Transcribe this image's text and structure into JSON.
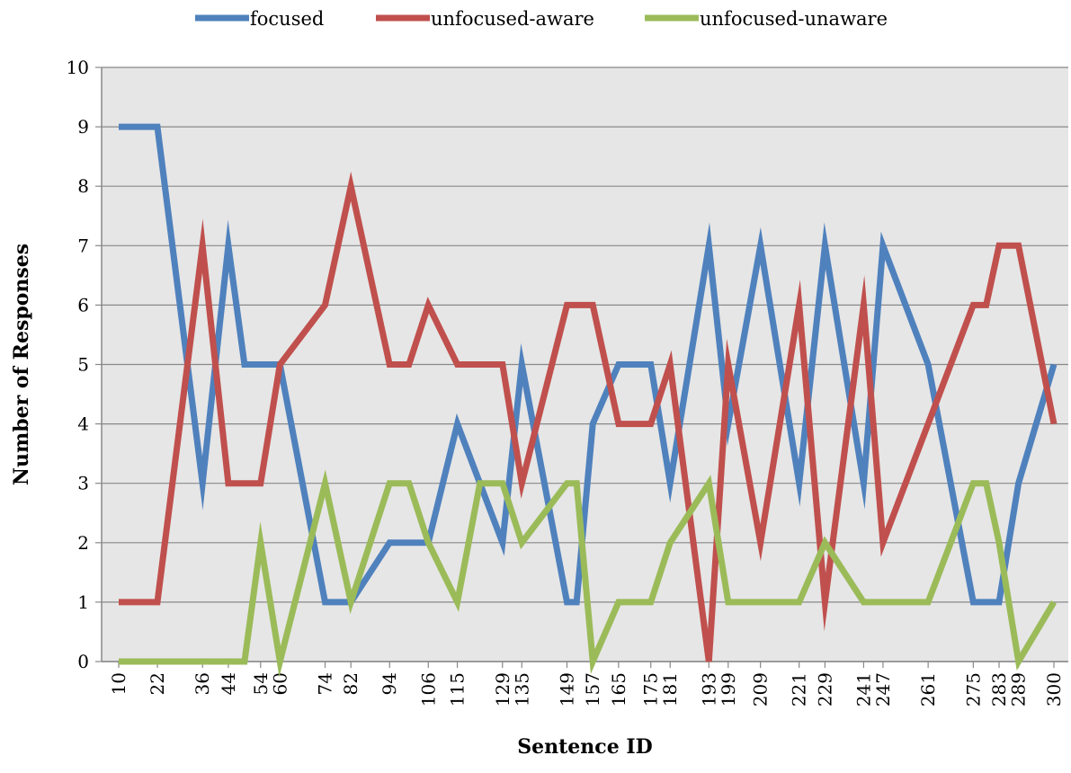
{
  "chart_data": {
    "type": "line",
    "xlabel": "Sentence ID",
    "ylabel": "Number of Responses",
    "ylim": [
      0,
      10
    ],
    "y_ticks": [
      0,
      1,
      2,
      3,
      4,
      5,
      6,
      7,
      8,
      9,
      10
    ],
    "grid": "horizontal",
    "legend_position": "top",
    "x_tick_labels": [
      "10",
      "22",
      "36",
      "44",
      "54",
      "60",
      "74",
      "82",
      "94",
      "106",
      "115",
      "129",
      "135",
      "149",
      "157",
      "165",
      "175",
      "181",
      "193",
      "199",
      "209",
      "221",
      "229",
      "241",
      "247",
      "261",
      "275",
      "283",
      "289",
      "300"
    ],
    "x": [
      10,
      16,
      22,
      36,
      44,
      49,
      54,
      60,
      74,
      82,
      94,
      100,
      106,
      115,
      122,
      129,
      135,
      149,
      152,
      157,
      165,
      170,
      175,
      181,
      193,
      199,
      209,
      221,
      229,
      241,
      247,
      261,
      275,
      279,
      283,
      289,
      300
    ],
    "series": [
      {
        "name": "focused",
        "color": "#4f81bd",
        "values": [
          9,
          9,
          9,
          3,
          7,
          5,
          5,
          5,
          1,
          1,
          2,
          2,
          2,
          4,
          3,
          2,
          5,
          1,
          1,
          4,
          5,
          5,
          5,
          3,
          7,
          4,
          7,
          3,
          7,
          3,
          7,
          5,
          1,
          1,
          1,
          3,
          5
        ]
      },
      {
        "name": "unfocused-aware",
        "color": "#c0504d",
        "values": [
          1,
          1,
          1,
          7,
          3,
          3,
          3,
          5,
          6,
          8,
          5,
          5,
          6,
          5,
          5,
          5,
          3,
          6,
          6,
          6,
          4,
          4,
          4,
          5,
          0,
          5,
          2,
          6,
          1,
          6,
          2,
          4,
          6,
          6,
          7,
          7,
          4
        ]
      },
      {
        "name": "unfocused-unaware",
        "color": "#9bbb59",
        "values": [
          0,
          0,
          0,
          0,
          0,
          0,
          2,
          0,
          3,
          1,
          3,
          3,
          2,
          1,
          3,
          3,
          2,
          3,
          3,
          0,
          1,
          1,
          1,
          2,
          3,
          1,
          1,
          1,
          2,
          1,
          1,
          1,
          3,
          3,
          2,
          0,
          1
        ]
      }
    ]
  }
}
